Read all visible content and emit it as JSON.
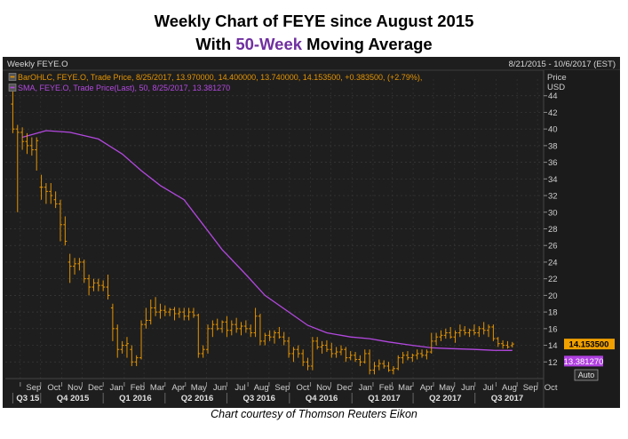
{
  "title": {
    "line1": "Weekly Chart of FEYE since August 2015",
    "line2_prefix": "With ",
    "line2_accent": "50-Week",
    "line2_suffix": " Moving Average"
  },
  "caption": "Chart courtesy of Thomson Reuters Eikon",
  "colors": {
    "background": "#1e1e1e",
    "price_bars": "#e59400",
    "sma": "#b348e0",
    "title_accent": "#7030a0",
    "last_price_tag": "#f0a000",
    "sma_tag": "#b040e0"
  },
  "chart_data": {
    "type": "line",
    "panel_title": "Weekly FEYE.O",
    "date_range": "8/21/2015 - 10/6/2017 (EST)",
    "legend": [
      {
        "icon": "bar-ohlc-icon",
        "text": "BarOHLC, FEYE.O, Trade Price, 8/25/2017, 13.970000, 14.400000, 13.740000, 14.153500, +0.383500, (+2.79%),"
      },
      {
        "icon": "sma-icon",
        "text": "SMA, FEYE.O, Trade Price(Last), 50, 8/25/2017, 13.381270"
      }
    ],
    "y_axis": {
      "label_line1": "Price",
      "label_line2": "USD",
      "ticks": [
        12,
        14,
        16,
        18,
        20,
        22,
        24,
        26,
        28,
        30,
        32,
        34,
        36,
        38,
        40,
        42,
        44
      ],
      "ylim": [
        10,
        46
      ]
    },
    "x_axis": {
      "months": [
        "Sep",
        "Oct",
        "Nov",
        "Dec",
        "Jan",
        "Feb",
        "Mar",
        "Apr",
        "May",
        "Jun",
        "Jul",
        "Aug",
        "Sep",
        "Oct",
        "Nov",
        "Dec",
        "Jan",
        "Feb",
        "Mar",
        "Apr",
        "May",
        "Jun",
        "Jul",
        "Aug",
        "Sep",
        "Oct"
      ],
      "quarters": [
        "Q3 15",
        "Q4 2015",
        "Q1 2016",
        "Q2 2016",
        "Q3 2016",
        "Q4 2016",
        "Q1 2017",
        "Q2 2017",
        "Q3 2017"
      ]
    },
    "last_price_label": "14.153500",
    "sma_label": "13.381270",
    "auto_button": "Auto",
    "series": [
      {
        "name": "BarOHLC, FEYE.O",
        "kind": "ohlc",
        "weeks": [
          "2015-08-21",
          "2015-08-28",
          "2015-09-04",
          "2015-09-11",
          "2015-09-18",
          "2015-09-25",
          "2015-10-02",
          "2015-10-09",
          "2015-10-16",
          "2015-10-23",
          "2015-10-30",
          "2015-11-06",
          "2015-11-13",
          "2015-11-20",
          "2015-11-27",
          "2015-12-04",
          "2015-12-11",
          "2015-12-18",
          "2015-12-25",
          "2016-01-01",
          "2016-01-08",
          "2016-01-15",
          "2016-01-22",
          "2016-01-29",
          "2016-02-05",
          "2016-02-12",
          "2016-02-19",
          "2016-02-26",
          "2016-03-04",
          "2016-03-11",
          "2016-03-18",
          "2016-03-25",
          "2016-04-01",
          "2016-04-08",
          "2016-04-15",
          "2016-04-22",
          "2016-04-29",
          "2016-05-06",
          "2016-05-13",
          "2016-05-20",
          "2016-05-27",
          "2016-06-03",
          "2016-06-10",
          "2016-06-17",
          "2016-06-24",
          "2016-07-01",
          "2016-07-08",
          "2016-07-15",
          "2016-07-22",
          "2016-07-29",
          "2016-08-05",
          "2016-08-12",
          "2016-08-19",
          "2016-08-26",
          "2016-09-02",
          "2016-09-09",
          "2016-09-16",
          "2016-09-23",
          "2016-09-30",
          "2016-10-07",
          "2016-10-14",
          "2016-10-21",
          "2016-10-28",
          "2016-11-04",
          "2016-11-11",
          "2016-11-18",
          "2016-11-25",
          "2016-12-02",
          "2016-12-09",
          "2016-12-16",
          "2016-12-23",
          "2016-12-30",
          "2017-01-06",
          "2017-01-13",
          "2017-01-20",
          "2017-01-27",
          "2017-02-03",
          "2017-02-10",
          "2017-02-17",
          "2017-02-24",
          "2017-03-03",
          "2017-03-10",
          "2017-03-17",
          "2017-03-24",
          "2017-03-31",
          "2017-04-07",
          "2017-04-14",
          "2017-04-21",
          "2017-04-28",
          "2017-05-05",
          "2017-05-12",
          "2017-05-19",
          "2017-05-26",
          "2017-06-02",
          "2017-06-09",
          "2017-06-16",
          "2017-06-23",
          "2017-06-30",
          "2017-07-07",
          "2017-07-14",
          "2017-07-21",
          "2017-07-28",
          "2017-08-04",
          "2017-08-11",
          "2017-08-18",
          "2017-08-25"
        ],
        "bars": [
          [
            43.0,
            44.5,
            39.5,
            40.0
          ],
          [
            40.0,
            40.5,
            30.0,
            39.6
          ],
          [
            39.6,
            40.2,
            37.5,
            38.5
          ],
          [
            38.5,
            39.5,
            37.0,
            38.0
          ],
          [
            38.0,
            39.0,
            36.8,
            37.5
          ],
          [
            37.5,
            39.0,
            35.0,
            38.6
          ],
          [
            33.0,
            34.5,
            31.5,
            33.0
          ],
          [
            33.0,
            33.5,
            31.0,
            32.5
          ],
          [
            32.5,
            33.5,
            31.0,
            32.0
          ],
          [
            31.5,
            32.5,
            30.5,
            31.0
          ],
          [
            31.0,
            31.5,
            26.5,
            28.5
          ],
          [
            28.5,
            29.5,
            26.0,
            26.5
          ],
          [
            24.0,
            25.0,
            21.5,
            23.5
          ],
          [
            23.5,
            24.5,
            22.5,
            23.8
          ],
          [
            23.8,
            24.5,
            23.0,
            24.0
          ],
          [
            24.0,
            24.3,
            21.5,
            22.0
          ],
          [
            22.0,
            22.5,
            20.0,
            21.0
          ],
          [
            21.0,
            22.0,
            20.5,
            21.5
          ],
          [
            21.5,
            22.0,
            20.5,
            21.2
          ],
          [
            21.2,
            21.8,
            20.5,
            21.0
          ],
          [
            21.0,
            22.5,
            19.5,
            20.0
          ],
          [
            18.5,
            19.0,
            14.5,
            16.0
          ],
          [
            16.0,
            16.5,
            12.5,
            13.5
          ],
          [
            13.5,
            14.5,
            13.0,
            14.0
          ],
          [
            14.0,
            15.0,
            12.5,
            14.2
          ],
          [
            13.5,
            14.0,
            11.5,
            12.0
          ],
          [
            12.0,
            12.8,
            11.5,
            12.5
          ],
          [
            12.5,
            17.0,
            12.3,
            16.5
          ],
          [
            16.5,
            18.5,
            16.0,
            17.0
          ],
          [
            17.0,
            19.5,
            16.5,
            18.5
          ],
          [
            18.5,
            19.8,
            17.5,
            18.0
          ],
          [
            18.0,
            19.0,
            17.2,
            18.2
          ],
          [
            18.2,
            18.8,
            17.5,
            18.0
          ],
          [
            18.0,
            18.5,
            17.5,
            18.3
          ],
          [
            18.3,
            18.6,
            17.0,
            17.8
          ],
          [
            17.8,
            18.5,
            17.3,
            18.0
          ],
          [
            18.0,
            18.5,
            17.0,
            17.5
          ],
          [
            17.5,
            18.5,
            17.0,
            18.0
          ],
          [
            18.0,
            18.5,
            17.3,
            17.6
          ],
          [
            17.6,
            17.8,
            12.5,
            13.0
          ],
          [
            13.0,
            14.0,
            12.5,
            13.5
          ],
          [
            13.5,
            16.5,
            13.0,
            16.0
          ],
          [
            16.0,
            17.0,
            15.0,
            16.5
          ],
          [
            16.5,
            17.2,
            15.8,
            16.0
          ],
          [
            16.0,
            17.0,
            15.5,
            16.8
          ],
          [
            16.8,
            17.5,
            15.0,
            15.8
          ],
          [
            15.8,
            17.0,
            15.2,
            16.5
          ],
          [
            16.5,
            17.3,
            15.5,
            16.0
          ],
          [
            16.0,
            16.8,
            15.2,
            16.3
          ],
          [
            16.3,
            17.0,
            15.5,
            16.0
          ],
          [
            16.0,
            16.5,
            15.0,
            15.5
          ],
          [
            15.5,
            18.5,
            15.0,
            17.5
          ],
          [
            17.5,
            17.8,
            14.0,
            14.5
          ],
          [
            14.5,
            15.5,
            14.0,
            15.2
          ],
          [
            15.2,
            15.8,
            14.5,
            15.0
          ],
          [
            15.0,
            15.8,
            14.2,
            15.5
          ],
          [
            15.5,
            16.2,
            14.8,
            15.0
          ],
          [
            15.0,
            15.6,
            14.0,
            14.5
          ],
          [
            14.5,
            15.0,
            12.5,
            13.0
          ],
          [
            13.0,
            13.8,
            12.0,
            13.5
          ],
          [
            13.5,
            14.0,
            12.5,
            13.0
          ],
          [
            13.0,
            13.5,
            11.5,
            12.0
          ],
          [
            12.0,
            12.5,
            11.0,
            11.5
          ],
          [
            11.5,
            15.0,
            11.0,
            14.5
          ],
          [
            14.5,
            15.0,
            13.5,
            13.8
          ],
          [
            13.8,
            14.5,
            13.0,
            14.0
          ],
          [
            14.0,
            14.6,
            13.2,
            13.5
          ],
          [
            13.5,
            14.3,
            12.5,
            13.0
          ],
          [
            13.0,
            13.8,
            12.5,
            13.2
          ],
          [
            13.2,
            14.0,
            12.8,
            13.5
          ],
          [
            13.5,
            13.8,
            12.0,
            12.5
          ],
          [
            12.5,
            13.3,
            12.2,
            12.8
          ],
          [
            12.8,
            13.2,
            12.0,
            12.3
          ],
          [
            12.3,
            12.8,
            11.5,
            12.0
          ],
          [
            12.0,
            13.5,
            11.8,
            13.0
          ],
          [
            13.0,
            13.5,
            10.5,
            11.0
          ],
          [
            11.0,
            12.0,
            10.5,
            11.5
          ],
          [
            11.5,
            12.3,
            11.0,
            11.8
          ],
          [
            11.8,
            12.2,
            11.2,
            11.5
          ],
          [
            11.5,
            12.0,
            10.8,
            11.0
          ],
          [
            11.0,
            11.5,
            10.5,
            11.2
          ],
          [
            11.2,
            12.8,
            11.0,
            12.5
          ],
          [
            12.5,
            13.2,
            11.8,
            12.8
          ],
          [
            12.8,
            13.3,
            12.2,
            12.5
          ],
          [
            12.5,
            13.0,
            12.0,
            12.8
          ],
          [
            12.8,
            13.5,
            12.3,
            13.0
          ],
          [
            13.0,
            13.5,
            12.5,
            12.8
          ],
          [
            12.8,
            13.5,
            12.3,
            13.2
          ],
          [
            13.2,
            15.5,
            13.0,
            14.5
          ],
          [
            14.5,
            15.5,
            14.0,
            15.0
          ],
          [
            15.0,
            15.8,
            14.5,
            15.2
          ],
          [
            15.2,
            16.0,
            14.8,
            15.5
          ],
          [
            15.5,
            16.2,
            14.8,
            15.0
          ],
          [
            15.0,
            15.8,
            14.3,
            15.5
          ],
          [
            15.5,
            16.5,
            15.0,
            15.8
          ],
          [
            15.8,
            16.3,
            15.2,
            15.5
          ],
          [
            15.5,
            16.0,
            15.0,
            15.8
          ],
          [
            15.8,
            16.5,
            15.2,
            15.5
          ],
          [
            15.5,
            16.3,
            15.0,
            16.0
          ],
          [
            16.0,
            16.8,
            15.3,
            15.8
          ],
          [
            15.8,
            16.5,
            15.0,
            16.2
          ],
          [
            16.2,
            16.5,
            14.5,
            14.8
          ],
          [
            14.8,
            15.0,
            13.8,
            14.2
          ],
          [
            14.2,
            14.6,
            13.6,
            14.0
          ],
          [
            14.0,
            14.5,
            13.6,
            13.8
          ],
          [
            13.97,
            14.4,
            13.74,
            14.1535
          ]
        ]
      },
      {
        "name": "SMA, FEYE.O, 50",
        "kind": "line",
        "points": [
          [
            "2015-09-04",
            39.0
          ],
          [
            "2015-10-09",
            39.8
          ],
          [
            "2015-11-13",
            39.6
          ],
          [
            "2015-12-25",
            38.8
          ],
          [
            "2016-01-29",
            37.0
          ],
          [
            "2016-02-26",
            35.0
          ],
          [
            "2016-03-25",
            33.2
          ],
          [
            "2016-04-29",
            31.5
          ],
          [
            "2016-05-27",
            28.5
          ],
          [
            "2016-06-24",
            25.5
          ],
          [
            "2016-07-29",
            22.5
          ],
          [
            "2016-08-26",
            20.0
          ],
          [
            "2016-09-30",
            18.0
          ],
          [
            "2016-10-28",
            16.4
          ],
          [
            "2016-11-25",
            15.5
          ],
          [
            "2016-12-30",
            15.0
          ],
          [
            "2017-01-27",
            14.8
          ],
          [
            "2017-02-24",
            14.4
          ],
          [
            "2017-03-31",
            14.0
          ],
          [
            "2017-04-28",
            13.7
          ],
          [
            "2017-05-26",
            13.6
          ],
          [
            "2017-06-30",
            13.5
          ],
          [
            "2017-07-28",
            13.4
          ],
          [
            "2017-08-25",
            13.38127
          ]
        ]
      }
    ]
  }
}
